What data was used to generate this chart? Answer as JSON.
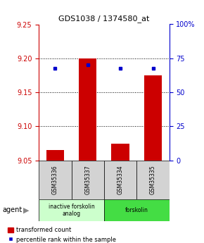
{
  "title": "GDS1038 / 1374580_at",
  "samples": [
    "GSM35336",
    "GSM35337",
    "GSM35334",
    "GSM35335"
  ],
  "bar_values": [
    9.065,
    9.2,
    9.075,
    9.175
  ],
  "blue_dot_values": [
    9.185,
    9.19,
    9.185,
    9.185
  ],
  "bar_bottom": 9.05,
  "ylim_left": [
    9.05,
    9.25
  ],
  "ylim_right": [
    0,
    100
  ],
  "yticks_left": [
    9.05,
    9.1,
    9.15,
    9.2,
    9.25
  ],
  "yticks_right": [
    0,
    25,
    50,
    75,
    100
  ],
  "ytick_labels_right": [
    "0",
    "25",
    "50",
    "75",
    "100%"
  ],
  "bar_color": "#cc0000",
  "dot_color": "#0000cc",
  "groups": [
    {
      "label": "inactive forskolin\nanalog",
      "samples": [
        0,
        1
      ],
      "color": "#ccffcc"
    },
    {
      "label": "forskolin",
      "samples": [
        2,
        3
      ],
      "color": "#44dd44"
    }
  ],
  "agent_label": "agent",
  "legend_bar_label": "transformed count",
  "legend_dot_label": "percentile rank within the sample",
  "background_color": "#ffffff",
  "bar_width": 0.55
}
